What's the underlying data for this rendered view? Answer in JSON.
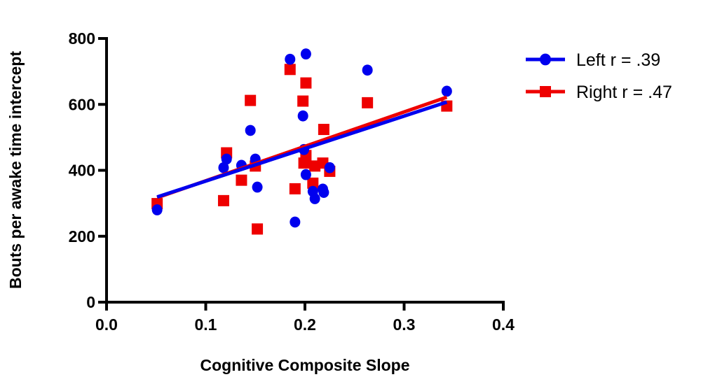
{
  "chart_data": {
    "type": "scatter",
    "title": "",
    "xlabel": "Cognitive Composite Slope",
    "ylabel": "Bouts per awake time intercept",
    "xlim": [
      0.0,
      0.4
    ],
    "ylim": [
      0,
      800
    ],
    "xticks": [
      "0.0",
      "0.1",
      "0.2",
      "0.3",
      "0.4"
    ],
    "yticks": [
      "0",
      "200",
      "400",
      "600",
      "800"
    ],
    "grid": false,
    "legend_position": "top-right",
    "series": [
      {
        "name": "Left r = .39",
        "color": "#0000ee",
        "marker": "circle",
        "x": [
          0.051,
          0.118,
          0.121,
          0.136,
          0.145,
          0.15,
          0.152,
          0.185,
          0.19,
          0.198,
          0.199,
          0.201,
          0.201,
          0.208,
          0.21,
          0.218,
          0.219,
          0.225,
          0.263,
          0.343
        ],
        "y": [
          280,
          408,
          434,
          415,
          521,
          434,
          349,
          737,
          243,
          565,
          463,
          753,
          387,
          336,
          314,
          343,
          333,
          408,
          704,
          640
        ],
        "fit": {
          "x": [
            0.051,
            0.343
          ],
          "y": [
            319,
            607
          ]
        }
      },
      {
        "name": "Right r = .47",
        "color": "#ee0000",
        "marker": "square",
        "x": [
          0.051,
          0.118,
          0.121,
          0.136,
          0.145,
          0.15,
          0.152,
          0.185,
          0.19,
          0.198,
          0.199,
          0.201,
          0.201,
          0.208,
          0.21,
          0.218,
          0.219,
          0.225,
          0.263,
          0.343
        ],
        "y": [
          299,
          308,
          453,
          370,
          612,
          413,
          222,
          706,
          344,
          610,
          422,
          665,
          445,
          361,
          413,
          422,
          524,
          397,
          605,
          595
        ],
        "fit": {
          "x": [
            0.051,
            0.343
          ],
          "y": [
            317,
            622
          ]
        }
      }
    ]
  }
}
